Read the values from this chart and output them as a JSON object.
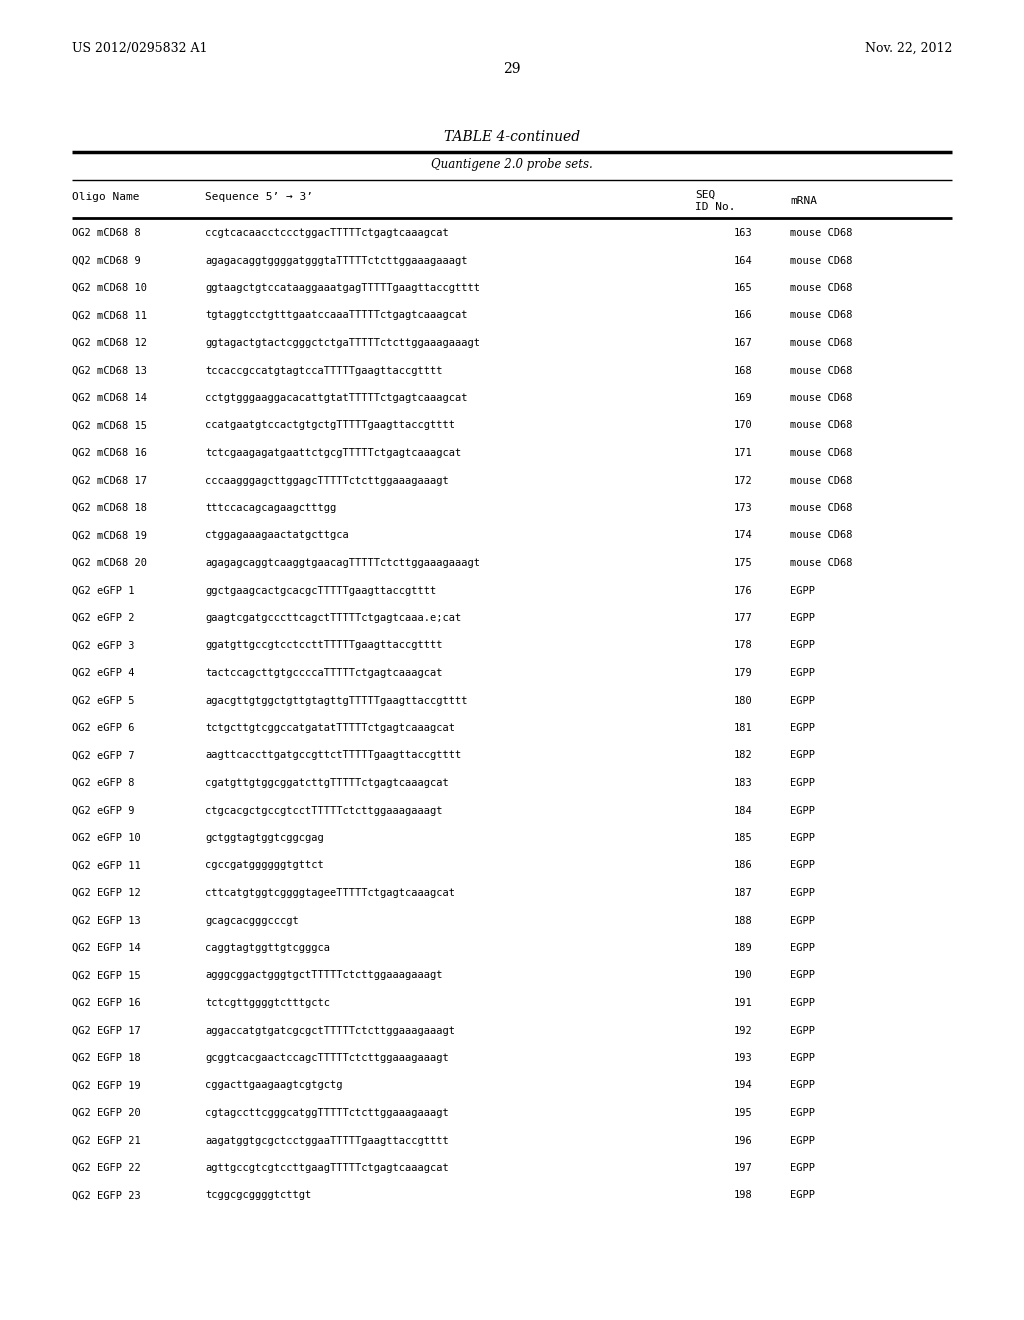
{
  "patent_num": "US 2012/0295832 A1",
  "patent_date": "Nov. 22, 2012",
  "page_num": "29",
  "table_title": "TABLE 4-continued",
  "table_subtitle": "Quantigene 2.0 probe sets.",
  "rows": [
    [
      "OG2 mCD68 8",
      "ccgtcacaacctccctggacTTTTTctgagtcaaagcat",
      "163",
      "mouse CD68"
    ],
    [
      "QQ2 mCD68 9",
      "agagacaggtggggatgggtaTTTTTctcttggaaagaaagt",
      "164",
      "mouse CD68"
    ],
    [
      "QG2 mCD68 10",
      "ggtaagctgtccataaggaaatgagTTTTTgaagttaccgtttt",
      "165",
      "mouse CD68"
    ],
    [
      "QG2 mCD68 11",
      "tgtaggtcctgtttgaatccaaaTTTTTctgagtcaaagcat",
      "166",
      "mouse CD68"
    ],
    [
      "QG2 mCD68 12",
      "ggtagactgtactcgggctctgaTTTTTctcttggaaagaaagt",
      "167",
      "mouse CD68"
    ],
    [
      "QG2 mCD68 13",
      "tccaccgccatgtagtccaTTTTTgaagttaccgtttt",
      "168",
      "mouse CD68"
    ],
    [
      "QG2 mCD68 14",
      "cctgtgggaaggacacattgtatTTTTTctgagtcaaagcat",
      "169",
      "mouse CD68"
    ],
    [
      "QG2 mCD68 15",
      "ccatgaatgtccactgtgctgTTTTTgaagttaccgtttt",
      "170",
      "mouse CD68"
    ],
    [
      "QG2 mCD68 16",
      "tctcgaagagatgaattctgcgTTTTTctgagtcaaagcat",
      "171",
      "mouse CD68"
    ],
    [
      "QG2 mCD68 17",
      "cccaagggagcttggagcTTTTTctcttggaaagaaagt",
      "172",
      "mouse CD68"
    ],
    [
      "QG2 mCD68 18",
      "tttccacagcagaagctttgg",
      "173",
      "mouse CD68"
    ],
    [
      "QG2 mCD68 19",
      "ctggagaaagaactatgcttgca",
      "174",
      "mouse CD68"
    ],
    [
      "QG2 mCD68 20",
      "agagagcaggtcaaggtgaacagTTTTTctcttggaaagaaagt",
      "175",
      "mouse CD68"
    ],
    [
      "QG2 eGFP 1",
      "ggctgaagcactgcacgcTTTTTgaagttaccgtttt",
      "176",
      "EGPP"
    ],
    [
      "QG2 eGFP 2",
      "gaagtcgatgcccttcagctTTTTTctgagtcaaa.e;cat",
      "177",
      "EGPP"
    ],
    [
      "QG2 eGFP 3",
      "ggatgttgccgtcctccttTTTTTgaagttaccgtttt",
      "178",
      "EGPP"
    ],
    [
      "QG2 eGFP 4",
      "tactccagcttgtgccccaTTTTTctgagtcaaagcat",
      "179",
      "EGPP"
    ],
    [
      "QG2 eGFP 5",
      "agacgttgtggctgttgtagttgTTTTTgaagttaccgtttt",
      "180",
      "EGPP"
    ],
    [
      "OG2 eGFP 6",
      "tctgcttgtcggccatgatatTTTTTctgagtcaaagcat",
      "181",
      "EGPP"
    ],
    [
      "QG2 eGFP 7",
      "aagttcaccttgatgccgttctTTTTTgaagttaccgtttt",
      "182",
      "EGPP"
    ],
    [
      "QG2 eGFP 8",
      "cgatgttgtggcggatcttgTTTTTctgagtcaaagcat",
      "183",
      "EGPP"
    ],
    [
      "QG2 eGFP 9",
      "ctgcacgctgccgtcctTTTTTctcttggaaagaaagt",
      "184",
      "EGPP"
    ],
    [
      "OG2 eGFP 10",
      "gctggtagtggtcggcgag",
      "185",
      "EGPP"
    ],
    [
      "QG2 eGFP 11",
      "cgccgatggggggtgttct",
      "186",
      "EGPP"
    ],
    [
      "QG2 EGFP 12",
      "cttcatgtggtcggggtageeTTTTTctgagtcaaagcat",
      "187",
      "EGPP"
    ],
    [
      "QG2 EGFP 13",
      "gcagcacgggcccgt",
      "188",
      "EGPP"
    ],
    [
      "QG2 EGFP 14",
      "caggtagtggttgtcgggca",
      "189",
      "EGPP"
    ],
    [
      "QG2 EGFP 15",
      "agggcggactgggtgctTTTTTctcttggaaagaaagt",
      "190",
      "EGPP"
    ],
    [
      "QG2 EGFP 16",
      "tctcgttggggtctttgctc",
      "191",
      "EGPP"
    ],
    [
      "QG2 EGFP 17",
      "aggaccatgtgatcgcgctTTTTTctcttggaaagaaagt",
      "192",
      "EGPP"
    ],
    [
      "QG2 EGFP 18",
      "gcggtcacgaactccagcTTTTTctcttggaaagaaagt",
      "193",
      "EGPP"
    ],
    [
      "QG2 EGFP 19",
      "cggacttgaagaagtcgtgctg",
      "194",
      "EGPP"
    ],
    [
      "QG2 EGFP 20",
      "cgtagccttcgggcatggTTTTTctcttggaaagaaagt",
      "195",
      "EGPP"
    ],
    [
      "QG2 EGFP 21",
      "aagatggtgcgctcctggaaTTTTTgaagttaccgtttt",
      "196",
      "EGPP"
    ],
    [
      "QG2 EGFP 22",
      "agttgccgtcgtccttgaagTTTTTctgagtcaaagcat",
      "197",
      "EGPP"
    ],
    [
      "QG2 EGFP 23",
      "tcggcgcggggtcttgt",
      "198",
      "EGPP"
    ]
  ],
  "bg_color": "#ffffff",
  "text_color": "#000000",
  "line_color": "#000000"
}
